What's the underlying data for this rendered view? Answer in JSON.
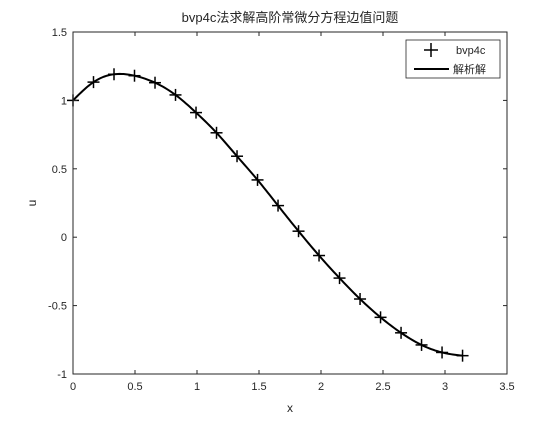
{
  "chart_data": {
    "type": "line",
    "title": "bvp4c法求解高阶常微分方程边值问题",
    "xlabel": "x",
    "ylabel": "u",
    "xlim": [
      0,
      3.5
    ],
    "ylim": [
      -1,
      1.5
    ],
    "xticks": [
      "0",
      "0.5",
      "1",
      "1.5",
      "2",
      "2.5",
      "3",
      "3.5"
    ],
    "yticks": [
      "-1",
      "-0.5",
      "0",
      "0.5",
      "1",
      "1.5"
    ],
    "grid": false,
    "legend_position": "top-right",
    "series": [
      {
        "name": "bvp4c",
        "marker": "plus",
        "color": "#000000",
        "x": [
          0,
          0.1653,
          0.3307,
          0.496,
          0.6614,
          0.8267,
          0.9921,
          1.1574,
          1.3228,
          1.4881,
          1.6535,
          1.8188,
          1.9842,
          2.1495,
          2.3149,
          2.4802,
          2.6456,
          2.8109,
          2.9762,
          3.1416
        ],
        "y": [
          1.0,
          1.1337,
          1.191,
          1.1805,
          1.1294,
          1.04,
          0.9109,
          0.7632,
          0.592,
          0.4187,
          0.231,
          0.044,
          -0.134,
          -0.2988,
          -0.4518,
          -0.5858,
          -0.699,
          -0.7875,
          -0.8425,
          -0.866
        ]
      },
      {
        "name": "解析解",
        "marker": "none",
        "color": "#000000",
        "function": "analytic"
      }
    ]
  }
}
